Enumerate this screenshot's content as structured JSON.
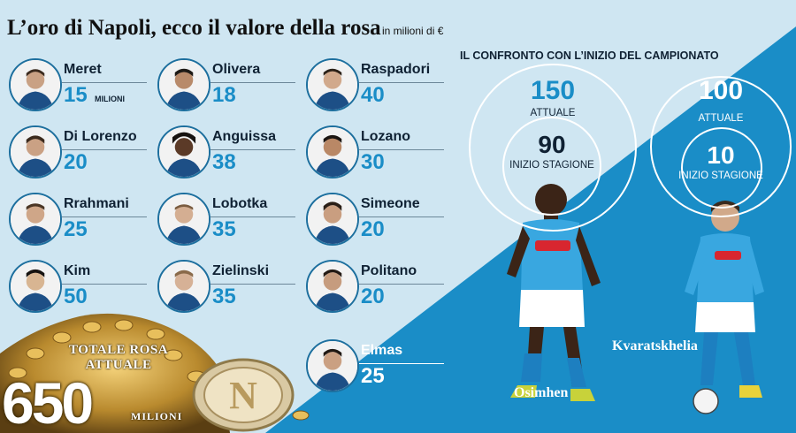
{
  "header": {
    "title": "L’oro di Napoli, ecco il valore della rosa",
    "subtitle": "in milioni di €"
  },
  "players": [
    {
      "name": "Meret",
      "value": "15",
      "unit": "MILIONI"
    },
    {
      "name": "Olivera",
      "value": "18"
    },
    {
      "name": "Raspadori",
      "value": "40"
    },
    {
      "name": "Di Lorenzo",
      "value": "20"
    },
    {
      "name": "Anguissa",
      "value": "38"
    },
    {
      "name": "Lozano",
      "value": "30"
    },
    {
      "name": "Rrahmani",
      "value": "25"
    },
    {
      "name": "Lobotka",
      "value": "35"
    },
    {
      "name": "Simeone",
      "value": "20"
    },
    {
      "name": "Kim",
      "value": "50"
    },
    {
      "name": "Zielinski",
      "value": "35"
    },
    {
      "name": "Politano",
      "value": "20"
    },
    {
      "name": "Elmas",
      "value": "25"
    }
  ],
  "total": {
    "label_line1": "TOTALE ROSA",
    "label_line2": "ATTUALE",
    "value": "650",
    "unit": "MILIONI"
  },
  "comparison": {
    "heading": "IL CONFRONTO CON L’INIZIO DEL CAMPIONATO",
    "osimhen": {
      "name": "Osimhen",
      "current": "150",
      "current_label": "ATTUALE",
      "start": "90",
      "start_label": "INIZIO STAGIONE"
    },
    "kvaratskhelia": {
      "name": "Kvaratskhelia",
      "current": "100",
      "current_label": "ATTUALE",
      "start": "10",
      "start_label": "INIZIO STAGIONE"
    }
  },
  "colors": {
    "background_light": "#cfe6f2",
    "background_dark": "#1a8dc7",
    "accent": "#1a8dc7",
    "text_dark": "#0f2133",
    "gold": "#d4a73c"
  },
  "icons": {
    "photo": "player-portrait-icon",
    "logo": "napoli-logo-coin-icon",
    "coins": "gold-coins-pile-icon"
  }
}
